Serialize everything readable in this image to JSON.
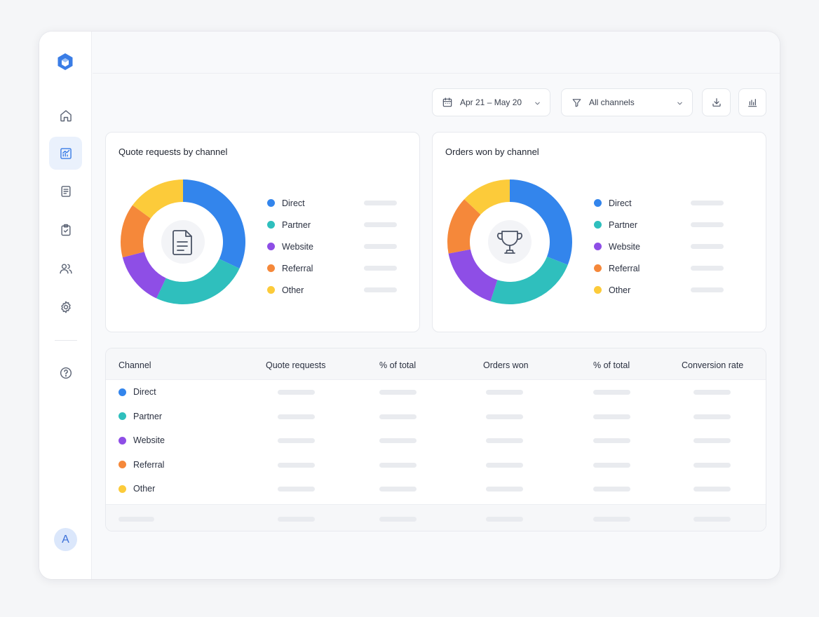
{
  "colors": {
    "Direct": "#3385ec",
    "Partner": "#2fbfbd",
    "Website": "#8e4ee6",
    "Referral": "#f5883a",
    "Other": "#fccb3a",
    "accent": "#3a7de6"
  },
  "sidebar": {
    "logo_icon": "hexagon-logo-icon",
    "items": [
      {
        "icon": "home-icon",
        "active": false
      },
      {
        "icon": "analytics-icon",
        "active": true
      },
      {
        "icon": "document-icon",
        "active": false
      },
      {
        "icon": "clipboard-icon",
        "active": false
      },
      {
        "icon": "users-icon",
        "active": false
      },
      {
        "icon": "gear-icon",
        "active": false
      },
      {
        "icon": "help-icon",
        "active": false
      }
    ],
    "avatar_initial": "A"
  },
  "toolbar": {
    "date_range": "Apr 21 – May 20",
    "channel_filter": "All channels",
    "download_icon": "download-icon",
    "chart_icon": "bar-chart-icon"
  },
  "cards": {
    "quote_title": "Quote requests by channel",
    "orders_title": "Orders won by channel",
    "legend": [
      "Direct",
      "Partner",
      "Website",
      "Referral",
      "Other"
    ]
  },
  "chart_data": [
    {
      "type": "pie",
      "title": "Quote requests by channel",
      "categories": [
        "Direct",
        "Partner",
        "Website",
        "Referral",
        "Other"
      ],
      "values": [
        32,
        25,
        14,
        14,
        15
      ]
    },
    {
      "type": "pie",
      "title": "Orders won by channel",
      "categories": [
        "Direct",
        "Partner",
        "Website",
        "Referral",
        "Other"
      ],
      "values": [
        31,
        24,
        17,
        15,
        13
      ]
    }
  ],
  "table": {
    "headers": [
      "Channel",
      "Quote requests",
      "% of total",
      "Orders won",
      "% of total",
      "Conversion rate"
    ],
    "rows": [
      "Direct",
      "Partner",
      "Website",
      "Referral",
      "Other"
    ]
  }
}
